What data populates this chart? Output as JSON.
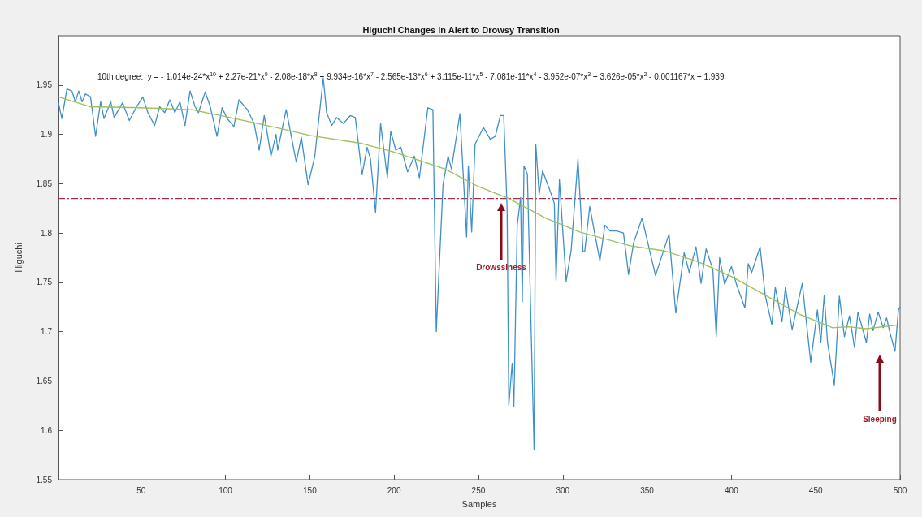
{
  "chart_data": {
    "type": "line",
    "title": "Higuchi Changes in Alert to Drowsy Transition",
    "xlabel": "Samples",
    "ylabel": "Higuchi",
    "xlim": [
      1,
      500
    ],
    "xticks": [
      50,
      100,
      150,
      200,
      250,
      300,
      350,
      400,
      450,
      500
    ],
    "ylim": [
      1.55,
      2.0
    ],
    "yticks": [
      1.55,
      1.6,
      1.65,
      1.7,
      1.75,
      1.8,
      1.85,
      1.9,
      1.95
    ],
    "grid": false,
    "marker": "none",
    "line_style": "solid",
    "series": [
      {
        "color": "#3f8fca",
        "x": [
          1,
          3,
          6,
          9,
          11,
          13,
          15,
          17,
          20,
          23,
          26,
          28,
          32,
          34,
          39,
          43,
          47,
          51,
          54,
          58,
          61,
          64,
          67,
          70,
          73,
          76,
          79,
          82,
          84,
          88,
          91,
          95,
          98,
          101,
          105,
          108,
          113,
          117,
          120,
          123,
          127,
          130,
          131,
          136,
          142,
          145,
          149,
          153,
          158,
          160,
          163,
          166,
          170,
          174,
          177,
          181,
          184,
          186,
          189,
          192,
          196,
          198,
          201,
          204,
          208,
          212,
          215,
          220,
          223,
          225,
          229,
          232,
          234,
          239,
          243,
          244,
          246,
          248,
          253,
          257,
          260,
          263,
          265,
          267,
          268,
          270,
          271,
          273,
          275,
          276,
          277,
          279,
          283,
          284,
          286,
          288,
          292,
          295,
          296,
          298,
          302,
          305,
          309,
          312,
          313,
          316,
          319,
          322,
          325,
          328,
          332,
          336,
          339,
          342,
          347,
          355,
          363,
          367,
          372,
          375,
          379,
          382,
          385,
          389,
          391,
          393,
          396,
          400,
          403,
          408,
          410,
          412,
          417,
          420,
          424,
          426,
          430,
          432,
          436,
          442,
          447,
          451,
          453,
          455,
          457,
          461,
          464,
          467,
          470,
          473,
          475,
          480,
          482,
          484,
          487,
          490,
          492,
          494,
          497,
          499,
          500
        ],
        "values": [
          1.932,
          1.916,
          1.946,
          1.944,
          1.933,
          1.944,
          1.933,
          1.941,
          1.938,
          1.898,
          1.933,
          1.916,
          1.933,
          1.917,
          1.932,
          1.914,
          1.927,
          1.938,
          1.922,
          1.909,
          1.928,
          1.922,
          1.935,
          1.922,
          1.933,
          1.909,
          1.944,
          1.928,
          1.922,
          1.943,
          1.928,
          1.898,
          1.927,
          1.916,
          1.908,
          1.935,
          1.925,
          1.911,
          1.884,
          1.919,
          1.878,
          1.9,
          1.884,
          1.925,
          1.872,
          1.897,
          1.849,
          1.878,
          1.957,
          1.922,
          1.909,
          1.917,
          1.911,
          1.919,
          1.917,
          1.859,
          1.887,
          1.875,
          1.821,
          1.911,
          1.856,
          1.903,
          1.884,
          1.887,
          1.862,
          1.878,
          1.856,
          1.927,
          1.925,
          1.7,
          1.849,
          1.878,
          1.865,
          1.921,
          1.796,
          1.868,
          1.801,
          1.89,
          1.907,
          1.895,
          1.898,
          1.919,
          1.919,
          1.824,
          1.625,
          1.668,
          1.624,
          1.808,
          1.836,
          1.73,
          1.868,
          1.86,
          1.58,
          1.89,
          1.839,
          1.863,
          1.845,
          1.83,
          1.752,
          1.854,
          1.751,
          1.783,
          1.875,
          1.781,
          1.781,
          1.827,
          1.799,
          1.772,
          1.808,
          1.802,
          1.802,
          1.8,
          1.758,
          1.79,
          1.815,
          1.757,
          1.799,
          1.719,
          1.78,
          1.76,
          1.786,
          1.749,
          1.784,
          1.763,
          1.695,
          1.775,
          1.748,
          1.766,
          1.748,
          1.724,
          1.769,
          1.76,
          1.786,
          1.737,
          1.707,
          1.745,
          1.71,
          1.745,
          1.702,
          1.749,
          1.669,
          1.722,
          1.689,
          1.737,
          1.689,
          1.646,
          1.736,
          1.695,
          1.716,
          1.684,
          1.72,
          1.689,
          1.718,
          1.701,
          1.72,
          1.704,
          1.714,
          1.699,
          1.68,
          1.722,
          1.725
        ]
      },
      {
        "color": "#9cc05a",
        "x": [
          1,
          20,
          50,
          80,
          100,
          130,
          150,
          180,
          200,
          230,
          250,
          268,
          290,
          310,
          340,
          360,
          380,
          400,
          420,
          440,
          460,
          469,
          480,
          500
        ],
        "values": [
          1.938,
          1.928,
          1.927,
          1.925,
          1.918,
          1.907,
          1.899,
          1.891,
          1.882,
          1.865,
          1.847,
          1.835,
          1.815,
          1.801,
          1.787,
          1.782,
          1.771,
          1.756,
          1.737,
          1.718,
          1.704,
          1.705,
          1.703,
          1.707
        ]
      }
    ],
    "ref_lines": [
      {
        "axis": "y",
        "value": 1.835,
        "color": "#a0304a",
        "line_style": "dashed"
      }
    ],
    "annotations": [
      "10th degree:  y = - 1.014e-24*x$^{10}$ + 2.27e-21*x$^{9}$ - 2.08e-18*x$^{8}$ + 9.934e-16*x$^{7}$ - 2.565e-13*x$^{6}$ + 3.115e-11*x$^{5}$ - 7.081e-11*x$^{4}$ - 3.952e-07*x$^{3}$ + 3.626e-05*x$^{2}$ - 0.001167*x + 1.939",
      "Drowssiness",
      "Sleeping"
    ]
  }
}
